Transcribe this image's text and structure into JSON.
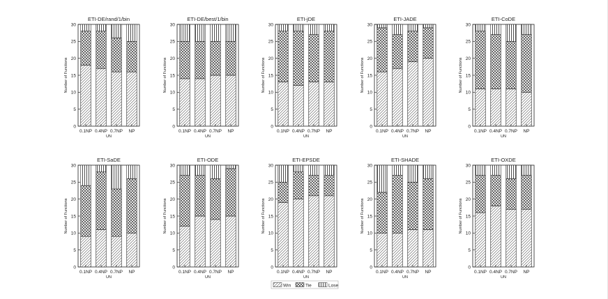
{
  "chart_data": {
    "type": "bar",
    "stacked": true,
    "categories": [
      "0.1NP",
      "0.4NP",
      "0.7NP",
      "NP"
    ],
    "xlabel": "UN",
    "ylabel": "Number of Functions",
    "ylim": [
      0,
      30
    ],
    "yticks": [
      0,
      5,
      10,
      15,
      20,
      25,
      30
    ],
    "legend": {
      "position": "bottom-center",
      "entries": [
        {
          "key": "win",
          "label": "Win"
        },
        {
          "key": "tie",
          "label": "Tie"
        },
        {
          "key": "lose",
          "label": "Lose"
        }
      ]
    },
    "panels": [
      {
        "title": "ETI-DE/rand/1/bin",
        "win": [
          18,
          17,
          16,
          16
        ],
        "tie": [
          10,
          11,
          10,
          9
        ],
        "lose": [
          2,
          2,
          4,
          5
        ]
      },
      {
        "title": "ETI-DE/best/1/bin",
        "win": [
          14,
          14,
          15,
          15
        ],
        "tie": [
          11,
          11,
          10,
          10
        ],
        "lose": [
          5,
          5,
          5,
          5
        ]
      },
      {
        "title": "ETI-jDE",
        "win": [
          13,
          12,
          13,
          13
        ],
        "tie": [
          15,
          16,
          14,
          15
        ],
        "lose": [
          2,
          2,
          3,
          2
        ]
      },
      {
        "title": "ETI-JADE",
        "win": [
          16,
          17,
          19,
          20
        ],
        "tie": [
          13,
          10,
          9,
          9
        ],
        "lose": [
          1,
          3,
          2,
          1
        ]
      },
      {
        "title": "ETI-CoDE",
        "win": [
          11,
          11,
          11,
          10
        ],
        "tie": [
          17,
          16,
          14,
          17
        ],
        "lose": [
          2,
          3,
          5,
          3
        ]
      },
      {
        "title": "ETI-SaDE",
        "win": [
          9,
          11,
          9,
          10
        ],
        "tie": [
          15,
          17,
          14,
          16
        ],
        "lose": [
          6,
          2,
          7,
          4
        ]
      },
      {
        "title": "ETI-ODE",
        "win": [
          12,
          15,
          14,
          15
        ],
        "tie": [
          15,
          12,
          12,
          14
        ],
        "lose": [
          3,
          3,
          4,
          1
        ]
      },
      {
        "title": "ETI-EPSDE",
        "win": [
          19,
          20,
          21,
          21
        ],
        "tie": [
          6,
          8,
          6,
          6
        ],
        "lose": [
          5,
          2,
          3,
          3
        ]
      },
      {
        "title": "ETI-SHADE",
        "win": [
          10,
          10,
          11,
          11
        ],
        "tie": [
          12,
          17,
          14,
          15
        ],
        "lose": [
          8,
          3,
          5,
          4
        ]
      },
      {
        "title": "ETI-OXDE",
        "win": [
          16,
          18,
          17,
          17
        ],
        "tie": [
          11,
          9,
          9,
          10
        ],
        "lose": [
          3,
          3,
          4,
          3
        ]
      }
    ]
  }
}
